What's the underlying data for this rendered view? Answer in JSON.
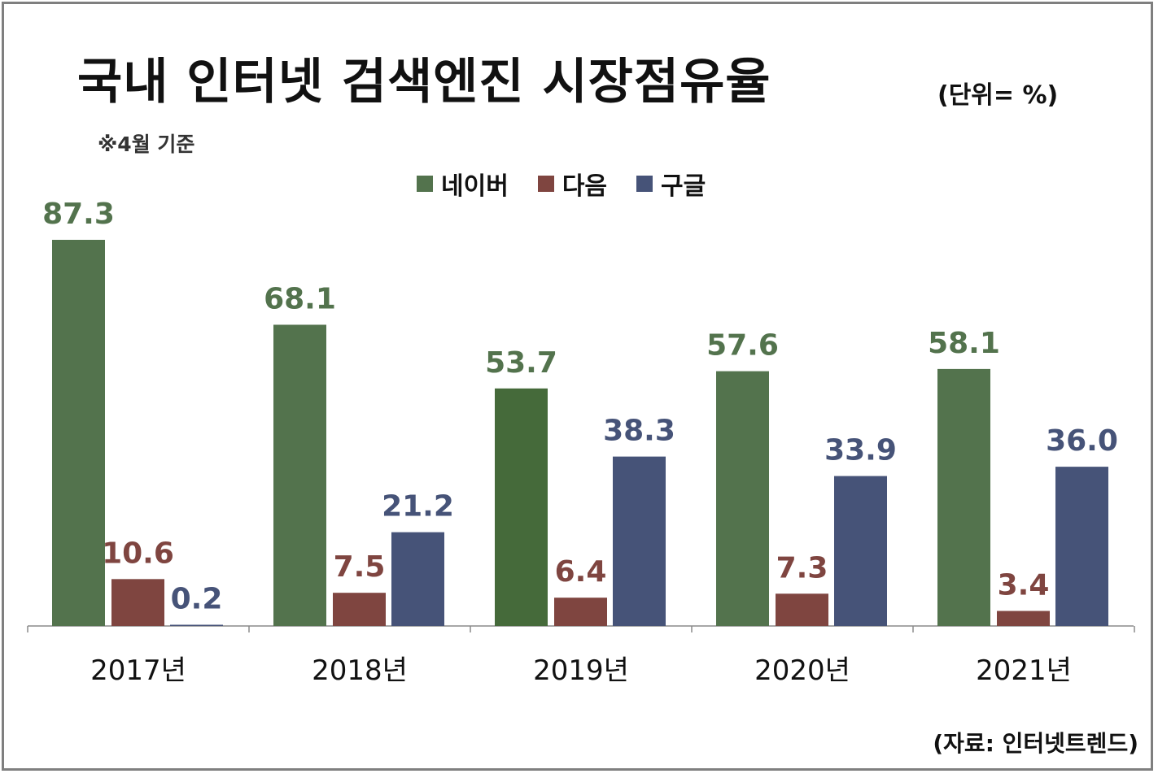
{
  "title": "국내 인터넷 검색엔진 시장점유율",
  "unit": "(단위= %)",
  "note": "※4월 기준",
  "source": "(자료: 인터넷트렌드)",
  "chart_data": {
    "type": "bar",
    "categories": [
      "2017년",
      "2018년",
      "2019년",
      "2020년",
      "2021년"
    ],
    "series": [
      {
        "name": "네이버",
        "color": "#53734d",
        "values": [
          87.3,
          68.1,
          53.7,
          57.6,
          58.1
        ],
        "labels": [
          "87.3",
          "68.1",
          "53.7",
          "57.6",
          "58.1"
        ]
      },
      {
        "name": "다음",
        "color": "#7f4540",
        "values": [
          10.6,
          7.5,
          6.4,
          7.3,
          3.4
        ],
        "labels": [
          "10.6",
          "7.5",
          "6.4",
          "7.3",
          "3.4"
        ]
      },
      {
        "name": "구글",
        "color": "#465378",
        "values": [
          0.2,
          21.2,
          38.3,
          33.9,
          36.0
        ],
        "labels": [
          "0.2",
          "21.2",
          "38.3",
          "33.9",
          "36.0"
        ]
      }
    ],
    "highlight": {
      "series": 0,
      "category": 2,
      "color": "#456a3a"
    },
    "label_colors": [
      "#53734d",
      "#7f4540",
      "#465378"
    ],
    "ylim": [
      0,
      87.3
    ],
    "legend_position": "top-center",
    "grid": false
  }
}
